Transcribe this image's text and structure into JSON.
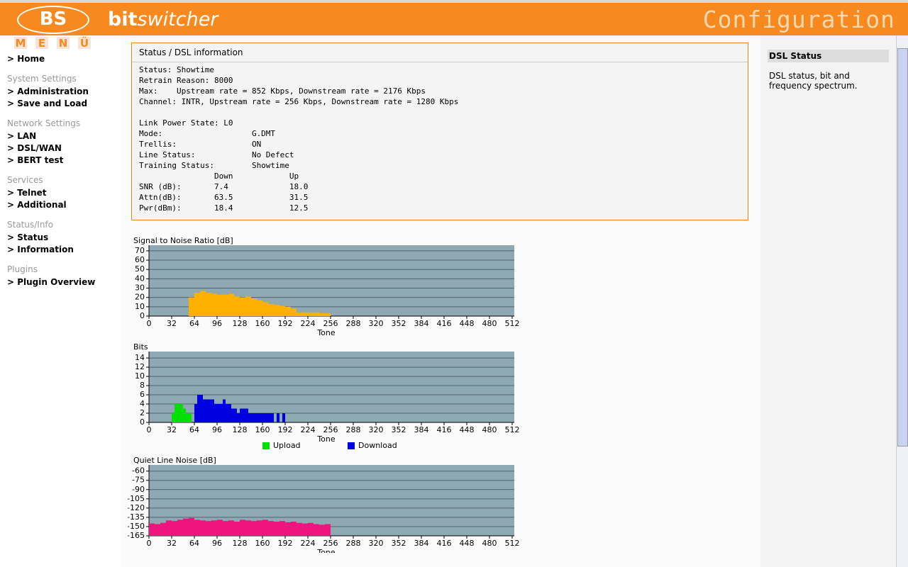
{
  "header": {
    "logo": "BS",
    "brand_bold": "bit",
    "brand_italic": "switcher",
    "title": "Configuration",
    "menu_letters": [
      "M",
      "E",
      "N",
      "Ü"
    ]
  },
  "menu": [
    {
      "items": [
        "> Home"
      ]
    },
    {
      "heading": "System Settings",
      "items": [
        "> Administration",
        "> Save and Load"
      ]
    },
    {
      "heading": "Network Settings",
      "items": [
        "> LAN",
        "> DSL/WAN",
        "> BERT test"
      ]
    },
    {
      "heading": "Services",
      "items": [
        "> Telnet",
        "> Additional"
      ]
    },
    {
      "heading": "Status/Info",
      "items": [
        "> Status",
        "> Information"
      ]
    },
    {
      "heading": "Plugins",
      "items": [
        "> Plugin Overview"
      ]
    }
  ],
  "status_panel": {
    "title": "Status / DSL information",
    "lines": [
      "Status: Showtime",
      "Retrain Reason: 8000",
      "Max:    Upstream rate = 852 Kbps, Downstream rate = 2176 Kbps",
      "Channel: INTR, Upstream rate = 256 Kbps, Downstream rate = 1280 Kbps",
      "",
      "Link Power State: L0",
      "Mode:                   G.DMT",
      "Trellis:                ON",
      "Line Status:            No Defect",
      "Training Status:        Showtime",
      "                Down            Up",
      "SNR (dB):       7.4             18.0",
      "Attn(dB):       63.5            31.5",
      "Pwr(dBm):       18.4            12.5"
    ]
  },
  "help": {
    "title": "DSL Status",
    "text": "DSL status, bit and frequency spectrum."
  },
  "chart_data": [
    {
      "type": "bar",
      "title": "Signal to Noise Ratio [dB]",
      "x_label": "Tone",
      "color": "#ffb000",
      "x": [
        56,
        64,
        72,
        80,
        88,
        96,
        104,
        112,
        120,
        128,
        136,
        144,
        152,
        160,
        168,
        176,
        184,
        192,
        200,
        208,
        216,
        224,
        232,
        240,
        248
      ],
      "values": [
        20,
        25,
        27,
        25,
        24,
        23,
        23,
        24,
        21,
        20,
        21,
        19,
        17,
        15,
        13,
        12,
        11,
        10,
        8,
        4,
        4,
        4,
        4,
        3,
        3
      ],
      "xlim": [
        0,
        512
      ],
      "xticks": [
        0,
        32,
        64,
        96,
        128,
        160,
        192,
        224,
        256,
        288,
        320,
        352,
        384,
        416,
        448,
        480,
        512
      ],
      "ylim": [
        0,
        76
      ],
      "yticks": [
        0,
        10,
        20,
        30,
        40,
        50,
        60,
        70
      ],
      "grid": true
    },
    {
      "type": "bar",
      "title": "Bits",
      "x_label": "Tone",
      "x": [
        32,
        36,
        40,
        44,
        48,
        52,
        56,
        60,
        64,
        68,
        72,
        76,
        80,
        84,
        88,
        92,
        96,
        100,
        104,
        108,
        112,
        116,
        120,
        124,
        128,
        132,
        136,
        140,
        144,
        148,
        152,
        156,
        160,
        164,
        168,
        172,
        176,
        180,
        184,
        188,
        192
      ],
      "series": [
        {
          "name": "Upload",
          "color": "#00e000",
          "values": [
            2,
            4,
            4,
            4,
            3,
            2,
            2,
            null,
            null,
            null,
            null,
            null,
            null,
            null,
            null,
            null,
            null,
            null,
            null,
            null,
            null,
            null,
            null,
            null,
            null,
            null,
            null,
            null,
            null,
            null,
            null,
            null,
            null,
            null,
            null,
            null,
            null,
            null,
            null,
            null,
            null
          ]
        },
        {
          "name": "Download",
          "color": "#0000e0",
          "values": [
            null,
            null,
            null,
            null,
            null,
            null,
            null,
            null,
            4,
            6,
            6,
            5,
            5,
            5,
            5,
            4,
            4,
            4,
            5,
            4,
            4,
            3,
            3,
            2,
            3,
            3,
            3,
            2,
            2,
            2,
            2,
            2,
            2,
            2,
            2,
            2,
            null,
            2,
            null,
            2,
            null
          ]
        }
      ],
      "xlim": [
        0,
        512
      ],
      "xticks": [
        0,
        32,
        64,
        96,
        128,
        160,
        192,
        224,
        256,
        288,
        320,
        352,
        384,
        416,
        448,
        480,
        512
      ],
      "ylim": [
        0,
        15.4
      ],
      "yticks": [
        0,
        2,
        4,
        6,
        8,
        10,
        12,
        14
      ],
      "grid": true,
      "legend": "bottom"
    },
    {
      "type": "bar",
      "title": "Quiet Line Noise [dB]",
      "x_label": "Tone",
      "color": "#f0147f",
      "x": [
        0,
        8,
        16,
        24,
        32,
        40,
        48,
        56,
        64,
        72,
        80,
        88,
        96,
        104,
        112,
        120,
        128,
        136,
        144,
        152,
        160,
        168,
        176,
        184,
        192,
        200,
        208,
        216,
        224,
        232,
        240,
        248
      ],
      "values": [
        -145,
        -146,
        -144,
        -140,
        -141,
        -139,
        -137,
        -136,
        -139,
        -140,
        -141,
        -140,
        -139,
        -141,
        -140,
        -142,
        -139,
        -140,
        -141,
        -140,
        -139,
        -141,
        -142,
        -141,
        -143,
        -142,
        -144,
        -145,
        -144,
        -146,
        -147,
        -146
      ],
      "xlim": [
        0,
        512
      ],
      "xticks": [
        0,
        32,
        64,
        96,
        128,
        160,
        192,
        224,
        256,
        288,
        320,
        352,
        384,
        416,
        448,
        480,
        512
      ],
      "ylim": [
        -165,
        -50
      ],
      "yticks": [
        -60,
        -75,
        -90,
        -105,
        -120,
        -135,
        -150,
        -165
      ],
      "grid": true
    }
  ]
}
